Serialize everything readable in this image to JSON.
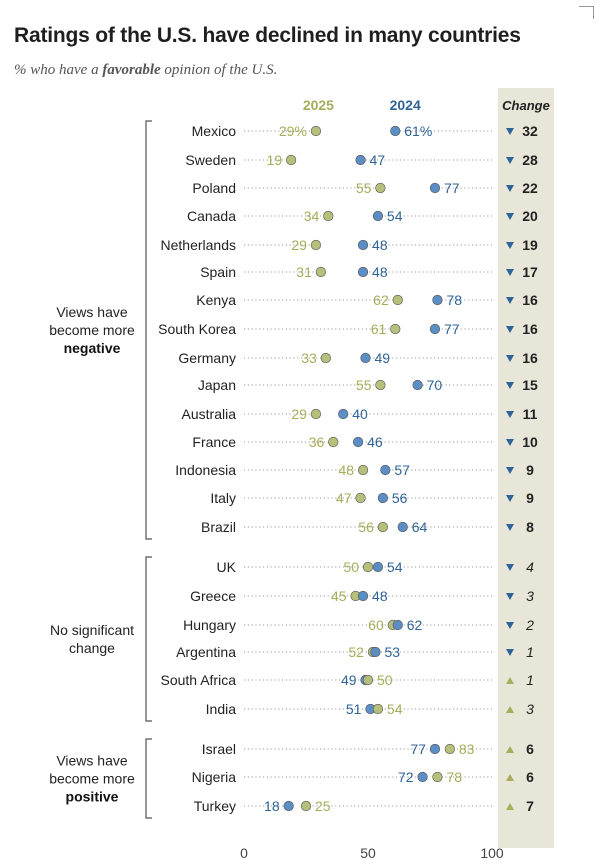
{
  "title": "Ratings of the U.S. have declined in many countries",
  "subtitle": {
    "prefix": "% who have a ",
    "emphasis": "favorable",
    "suffix": " opinion of the U.S."
  },
  "colors": {
    "y2025": "#a7ad5a",
    "y2024": "#2f6496",
    "dot2025": "#b7c07a",
    "dot2024": "#5b8ec4",
    "change_bg": "#e8e6d9"
  },
  "chart_data": {
    "type": "dot",
    "series_names": [
      "2025",
      "2024"
    ],
    "change_header": "Change",
    "xlim": [
      0,
      100
    ],
    "xticks": [
      0,
      50,
      100
    ],
    "groups": [
      {
        "label_lines": [
          "Views have",
          "become more"
        ],
        "label_bold": "negative",
        "start": 0,
        "end": 14
      },
      {
        "label_lines": [
          "No significant",
          "change"
        ],
        "label_bold": "",
        "start": 15,
        "end": 20
      },
      {
        "label_lines": [
          "Views have",
          "become more"
        ],
        "label_bold": "positive",
        "start": 21,
        "end": 23
      }
    ],
    "rows": [
      {
        "country": "Mexico",
        "v2025": 29,
        "v2024": 61,
        "label2025": "29%",
        "label2024": "61%",
        "change": "32",
        "direction": "down",
        "significant": true
      },
      {
        "country": "Sweden",
        "v2025": 19,
        "v2024": 47,
        "label2025": "19",
        "label2024": "47",
        "change": "28",
        "direction": "down",
        "significant": true
      },
      {
        "country": "Poland",
        "v2025": 55,
        "v2024": 77,
        "label2025": "55",
        "label2024": "77",
        "change": "22",
        "direction": "down",
        "significant": true
      },
      {
        "country": "Canada",
        "v2025": 34,
        "v2024": 54,
        "label2025": "34",
        "label2024": "54",
        "change": "20",
        "direction": "down",
        "significant": true
      },
      {
        "country": "Netherlands",
        "v2025": 29,
        "v2024": 48,
        "label2025": "29",
        "label2024": "48",
        "change": "19",
        "direction": "down",
        "significant": true
      },
      {
        "country": "Spain",
        "v2025": 31,
        "v2024": 48,
        "label2025": "31",
        "label2024": "48",
        "change": "17",
        "direction": "down",
        "significant": true
      },
      {
        "country": "Kenya",
        "v2025": 62,
        "v2024": 78,
        "label2025": "62",
        "label2024": "78",
        "change": "16",
        "direction": "down",
        "significant": true
      },
      {
        "country": "South Korea",
        "v2025": 61,
        "v2024": 77,
        "label2025": "61",
        "label2024": "77",
        "change": "16",
        "direction": "down",
        "significant": true
      },
      {
        "country": "Germany",
        "v2025": 33,
        "v2024": 49,
        "label2025": "33",
        "label2024": "49",
        "change": "16",
        "direction": "down",
        "significant": true
      },
      {
        "country": "Japan",
        "v2025": 55,
        "v2024": 70,
        "label2025": "55",
        "label2024": "70",
        "change": "15",
        "direction": "down",
        "significant": true
      },
      {
        "country": "Australia",
        "v2025": 29,
        "v2024": 40,
        "label2025": "29",
        "label2024": "40",
        "change": "11",
        "direction": "down",
        "significant": true
      },
      {
        "country": "France",
        "v2025": 36,
        "v2024": 46,
        "label2025": "36",
        "label2024": "46",
        "change": "10",
        "direction": "down",
        "significant": true
      },
      {
        "country": "Indonesia",
        "v2025": 48,
        "v2024": 57,
        "label2025": "48",
        "label2024": "57",
        "change": "9",
        "direction": "down",
        "significant": true
      },
      {
        "country": "Italy",
        "v2025": 47,
        "v2024": 56,
        "label2025": "47",
        "label2024": "56",
        "change": "9",
        "direction": "down",
        "significant": true
      },
      {
        "country": "Brazil",
        "v2025": 56,
        "v2024": 64,
        "label2025": "56",
        "label2024": "64",
        "change": "8",
        "direction": "down",
        "significant": true
      },
      {
        "country": "UK",
        "v2025": 50,
        "v2024": 54,
        "label2025": "50",
        "label2024": "54",
        "change": "4",
        "direction": "down",
        "significant": false
      },
      {
        "country": "Greece",
        "v2025": 45,
        "v2024": 48,
        "label2025": "45",
        "label2024": "48",
        "change": "3",
        "direction": "down",
        "significant": false
      },
      {
        "country": "Hungary",
        "v2025": 60,
        "v2024": 62,
        "label2025": "60",
        "label2024": "62",
        "change": "2",
        "direction": "down",
        "significant": false
      },
      {
        "country": "Argentina",
        "v2025": 52,
        "v2024": 53,
        "label2025": "52",
        "label2024": "53",
        "change": "1",
        "direction": "down",
        "significant": false
      },
      {
        "country": "South Africa",
        "v2025": 50,
        "v2024": 49,
        "label2025": "50",
        "label2024": "49",
        "change": "1",
        "direction": "up",
        "significant": false
      },
      {
        "country": "India",
        "v2025": 54,
        "v2024": 51,
        "label2025": "54",
        "label2024": "51",
        "change": "3",
        "direction": "up",
        "significant": false
      },
      {
        "country": "Israel",
        "v2025": 83,
        "v2024": 77,
        "label2025": "83",
        "label2024": "77",
        "change": "6",
        "direction": "up",
        "significant": true
      },
      {
        "country": "Nigeria",
        "v2025": 78,
        "v2024": 72,
        "label2025": "78",
        "label2024": "72",
        "change": "6",
        "direction": "up",
        "significant": true
      },
      {
        "country": "Turkey",
        "v2025": 25,
        "v2024": 18,
        "label2025": "25",
        "label2024": "18",
        "change": "7",
        "direction": "up",
        "significant": true
      }
    ]
  }
}
